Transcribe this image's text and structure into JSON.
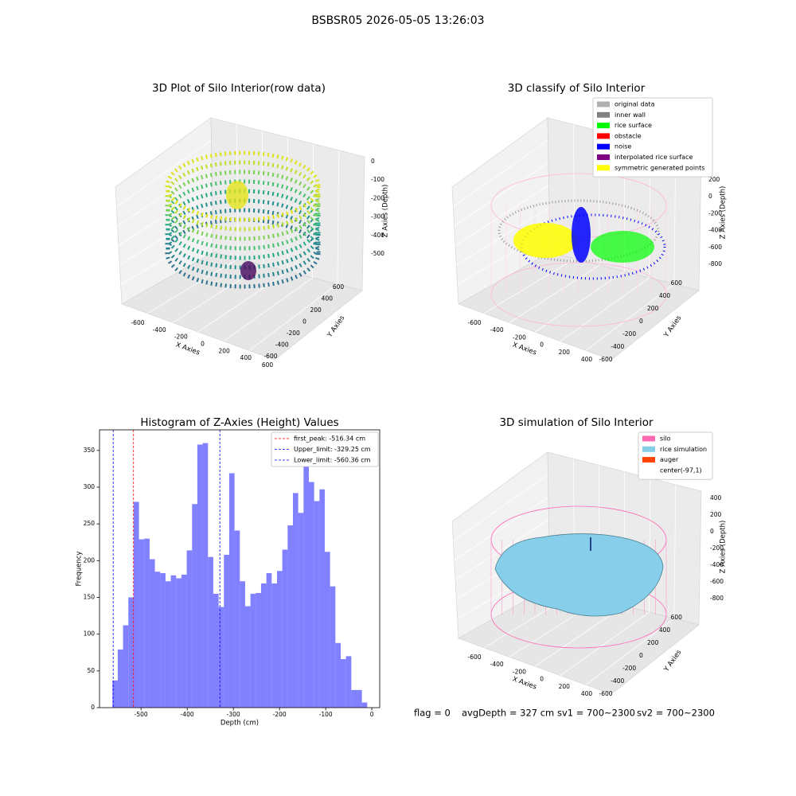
{
  "title": "BSBSR05 2026-05-05 13:26:03",
  "chart_data": [
    {
      "type": "scatter3d",
      "title": "3D Plot of Silo Interior(row data)",
      "xlabel": "X Axies",
      "ylabel": "Y Axies",
      "zlabel": "Z Axies (Depth)",
      "xlim": [
        -700,
        700
      ],
      "ylim": [
        -700,
        700
      ],
      "zlim": [
        -560,
        40
      ],
      "xticks": [
        -600,
        -400,
        -200,
        0,
        200,
        400,
        600
      ],
      "yticks": [
        -600,
        -400,
        -200,
        0,
        200,
        400,
        600
      ],
      "zticks": [
        0,
        -100,
        -200,
        -300,
        -400,
        -500
      ]
    },
    {
      "type": "scatter3d",
      "title": "3D classify of Silo Interior",
      "xlabel": "X Axies",
      "ylabel": "Y Axies",
      "zlabel": "Z Axies (Depth)",
      "xlim": [
        -700,
        500
      ],
      "ylim": [
        -700,
        700
      ],
      "zlim": [
        -900,
        300
      ],
      "xticks": [
        -600,
        -400,
        -200,
        0,
        200,
        400
      ],
      "yticks": [
        -600,
        -400,
        -200,
        0,
        200,
        400,
        600
      ],
      "zticks": [
        200,
        0,
        -200,
        -400,
        -600,
        -800
      ],
      "legend": "upper right",
      "series": [
        {
          "name": "original data",
          "color": "#b0b0b0"
        },
        {
          "name": "inner wall",
          "color": "#808080"
        },
        {
          "name": "rice surface",
          "color": "#00ff00"
        },
        {
          "name": "obstacle",
          "color": "#ff0000"
        },
        {
          "name": "noise",
          "color": "#0000ff"
        },
        {
          "name": "interpolated rice surface",
          "color": "#800080"
        },
        {
          "name": "symmetric generated points",
          "color": "#ffff00"
        }
      ]
    },
    {
      "type": "histogram",
      "title": "Histogram of Z-Axies (Height) Values",
      "xlabel": "Depth (cm)",
      "ylabel": "Frequency",
      "color": "#4b4bff",
      "xlim": [
        -590,
        17
      ],
      "ylim": [
        0,
        378
      ],
      "xticks": [
        -500,
        -400,
        -300,
        -200,
        -100,
        0
      ],
      "yticks": [
        0,
        50,
        100,
        150,
        200,
        250,
        300,
        350
      ],
      "bins": [
        -562,
        -550.5,
        -539,
        -527.5,
        -516,
        -504.5,
        -493,
        -481.5,
        -470,
        -458.5,
        -447,
        -435.5,
        -424,
        -412.5,
        -401,
        -389.5,
        -378,
        -366.5,
        -355,
        -343.5,
        -332,
        -320.5,
        -309,
        -297.5,
        -286,
        -274.5,
        -263,
        -251.5,
        -240,
        -228.5,
        -217,
        -205.5,
        -194,
        -182.5,
        -171,
        -159.5,
        -148,
        -136.5,
        -125,
        -113.5,
        -102,
        -90.5,
        -79,
        -67.5,
        -56,
        -44.5,
        -33,
        -21.5,
        -10
      ],
      "counts": [
        37,
        79,
        112,
        150,
        280,
        229,
        230,
        202,
        185,
        183,
        172,
        180,
        176,
        181,
        214,
        277,
        358,
        360,
        205,
        155,
        137,
        208,
        319,
        241,
        172,
        138,
        155,
        156,
        169,
        183,
        169,
        186,
        215,
        248,
        292,
        265,
        340,
        307,
        281,
        297,
        212,
        165,
        88,
        66,
        70,
        24,
        24,
        7
      ],
      "legend": "upper right",
      "vlines": [
        {
          "name": "first_peak: -516.34 cm",
          "value": -516.34,
          "color": "#ff0000"
        },
        {
          "name": "Upper_limit: -329.25 cm",
          "value": -329.25,
          "color": "#0000ff"
        },
        {
          "name": "Lower_limit: -560.36 cm",
          "value": -560.36,
          "color": "#0000ff"
        }
      ]
    },
    {
      "type": "surface3d",
      "title": "3D simulation of Silo Interior",
      "xlabel": "X Axies",
      "ylabel": "Y Axies",
      "zlabel": "Z Axies (Depth)",
      "xlim": [
        -700,
        500
      ],
      "ylim": [
        -700,
        700
      ],
      "zlim": [
        -900,
        500
      ],
      "xticks": [
        -600,
        -400,
        -200,
        0,
        200,
        400
      ],
      "yticks": [
        -600,
        -400,
        -200,
        0,
        200,
        400,
        600
      ],
      "zticks": [
        400,
        200,
        0,
        -200,
        -400,
        -600,
        -800
      ],
      "legend": "upper right",
      "series": [
        {
          "name": "silo",
          "color": "#ff69b4"
        },
        {
          "name": "rice simulation",
          "color": "#87ceeb"
        },
        {
          "name": "auger",
          "color": "#ff4500"
        },
        {
          "name": "center(-97,1)",
          "color": "#ffffff"
        }
      ]
    }
  ],
  "footer": [
    "flag = 0",
    "avgDepth = 327 cm",
    "sv1 = 700~2300",
    "sv2 = 700~2300"
  ]
}
